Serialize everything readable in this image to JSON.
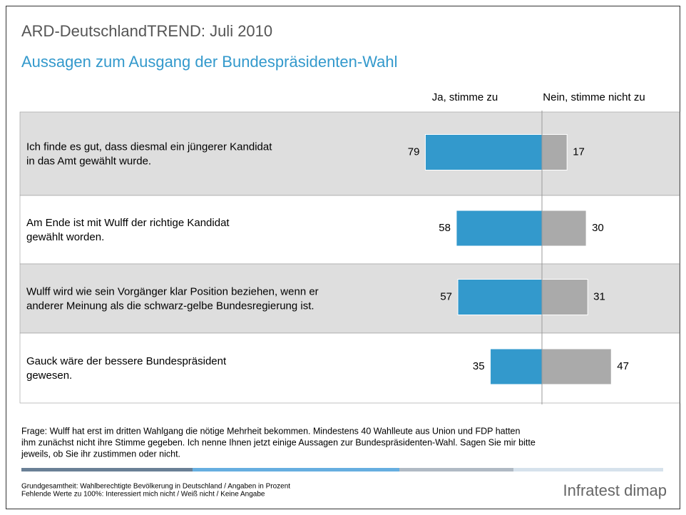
{
  "chart_data": {
    "type": "bar",
    "title": "ARD-DeutschlandTREND: Juli 2010",
    "subtitle": "Aussagen zum Ausgang der Bundespräsidenten-Wahl",
    "categories": [
      [
        "Ich finde es gut, dass diesmal ein jüngerer Kandidat",
        "in das Amt gewählt wurde."
      ],
      [
        "Am Ende ist mit Wulff der richtige Kandidat",
        "gewählt worden."
      ],
      [
        "Wulff wird wie sein Vorgänger klar Position beziehen, wenn er",
        "anderer Meinung als die schwarz-gelbe Bundesregierung ist."
      ],
      [
        "Gauck wäre der bessere Bundespräsident",
        "gewesen."
      ]
    ],
    "series": [
      {
        "name": "Ja, stimme zu",
        "color": "#3399cc",
        "values": [
          79,
          58,
          57,
          35
        ]
      },
      {
        "name": "Nein, stimme nicht zu",
        "color": "#aaaaaa",
        "values": [
          17,
          30,
          31,
          47
        ]
      }
    ],
    "xlim": [
      0,
      100
    ],
    "question": [
      "Frage: Wulff hat erst im dritten Wahlgang die nötige Mehrheit bekommen. Mindestens 40 Wahlleute aus Union und FDP hatten",
      "ihm zunächst nicht ihre Stimme gegeben. Ich nenne Ihnen jetzt einige Aussagen zur Bundespräsidenten-Wahl. Sagen Sie mir bitte",
      "jeweils, ob Sie ihr zustimmen oder nicht."
    ],
    "notes": [
      "Grundgesamtheit: Wahlberechtigte Bevölkerung in Deutschland / Angaben in Prozent",
      "Fehlende Werte zu 100%: Interessiert mich nicht / Weiß nicht / Keine Angabe"
    ],
    "logo": "Infratest dimap"
  }
}
